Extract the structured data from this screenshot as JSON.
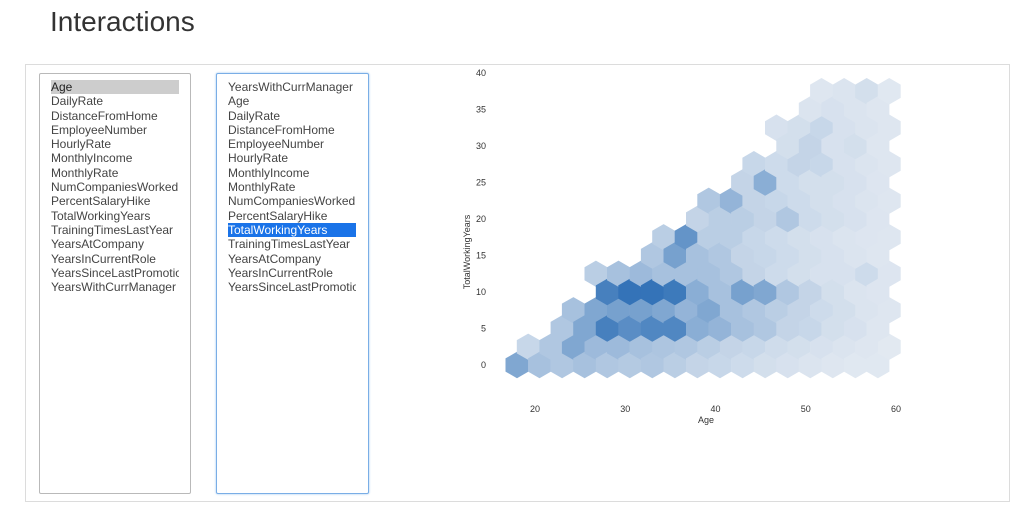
{
  "page": {
    "title": "Interactions"
  },
  "x_select": {
    "selected": "Age",
    "options": [
      "Age",
      "DailyRate",
      "DistanceFromHome",
      "EmployeeNumber",
      "HourlyRate",
      "MonthlyIncome",
      "MonthlyRate",
      "NumCompaniesWorked",
      "PercentSalaryHike",
      "TotalWorkingYears",
      "TrainingTimesLastYear",
      "YearsAtCompany",
      "YearsInCurrentRole",
      "YearsSinceLastPromotion",
      "YearsWithCurrManager"
    ]
  },
  "y_select": {
    "selected": "TotalWorkingYears",
    "options": [
      "YearsWithCurrManager",
      "Age",
      "DailyRate",
      "DistanceFromHome",
      "EmployeeNumber",
      "HourlyRate",
      "MonthlyIncome",
      "MonthlyRate",
      "NumCompaniesWorked",
      "PercentSalaryHike",
      "TotalWorkingYears",
      "TrainingTimesLastYear",
      "YearsAtCompany",
      "YearsInCurrentRole",
      "YearsSinceLastPromotion"
    ]
  },
  "chart_data": {
    "type": "heatmap",
    "subtype": "hexbin",
    "xlabel": "Age",
    "ylabel": "TotalWorkingYears",
    "xlim": [
      15,
      63
    ],
    "ylim": [
      -2,
      43
    ],
    "xticks": [
      20,
      30,
      40,
      50,
      60
    ],
    "yticks": [
      0,
      5,
      10,
      15,
      20,
      25,
      30,
      35,
      40
    ],
    "colors": {
      "low": "#eaeef4",
      "high": "#2a6db5"
    },
    "cells": [
      [
        18,
        0,
        0.55
      ],
      [
        19.25,
        2.5,
        0.18
      ],
      [
        20.5,
        0,
        0.35
      ],
      [
        21.75,
        2.5,
        0.3
      ],
      [
        23,
        0,
        0.3
      ],
      [
        24.25,
        2.5,
        0.55
      ],
      [
        25.5,
        0,
        0.35
      ],
      [
        26.75,
        2.5,
        0.4
      ],
      [
        28,
        0,
        0.3
      ],
      [
        29.25,
        2.5,
        0.4
      ],
      [
        30.5,
        0,
        0.28
      ],
      [
        31.75,
        2.5,
        0.35
      ],
      [
        33,
        0,
        0.3
      ],
      [
        34.25,
        2.5,
        0.32
      ],
      [
        35.5,
        0,
        0.25
      ],
      [
        36.75,
        2.5,
        0.3
      ],
      [
        38,
        0,
        0.2
      ],
      [
        39.25,
        2.5,
        0.25
      ],
      [
        40.5,
        0,
        0.18
      ],
      [
        41.75,
        2.5,
        0.2
      ],
      [
        43,
        0,
        0.15
      ],
      [
        44.25,
        2.5,
        0.18
      ],
      [
        45.5,
        0,
        0.12
      ],
      [
        46.75,
        2.5,
        0.14
      ],
      [
        48,
        0,
        0.1
      ],
      [
        49.25,
        2.5,
        0.12
      ],
      [
        50.5,
        0,
        0.08
      ],
      [
        51.75,
        2.5,
        0.1
      ],
      [
        53,
        0,
        0.06
      ],
      [
        54.25,
        2.5,
        0.08
      ],
      [
        55.5,
        0,
        0.05
      ],
      [
        56.75,
        2.5,
        0.06
      ],
      [
        58,
        0,
        0.05
      ],
      [
        59.25,
        2.5,
        0.04
      ],
      [
        23,
        5,
        0.3
      ],
      [
        24.25,
        7.5,
        0.35
      ],
      [
        25.5,
        5,
        0.55
      ],
      [
        26.75,
        7.5,
        0.55
      ],
      [
        28,
        5,
        0.85
      ],
      [
        29.25,
        7.5,
        0.6
      ],
      [
        30.5,
        5,
        0.75
      ],
      [
        31.75,
        7.5,
        0.6
      ],
      [
        33,
        5,
        0.8
      ],
      [
        34.25,
        7.5,
        0.55
      ],
      [
        35.5,
        5,
        0.8
      ],
      [
        36.75,
        7.5,
        0.45
      ],
      [
        38,
        5,
        0.5
      ],
      [
        39.25,
        7.5,
        0.55
      ],
      [
        40.5,
        5,
        0.45
      ],
      [
        41.75,
        7.5,
        0.35
      ],
      [
        43,
        5,
        0.35
      ],
      [
        44.25,
        7.5,
        0.3
      ],
      [
        45.5,
        5,
        0.3
      ],
      [
        46.75,
        7.5,
        0.25
      ],
      [
        48,
        5,
        0.2
      ],
      [
        49.25,
        7.5,
        0.2
      ],
      [
        50.5,
        5,
        0.18
      ],
      [
        51.75,
        7.5,
        0.15
      ],
      [
        53,
        5,
        0.12
      ],
      [
        54.25,
        7.5,
        0.12
      ],
      [
        55.5,
        5,
        0.1
      ],
      [
        56.75,
        7.5,
        0.08
      ],
      [
        58,
        5,
        0.06
      ],
      [
        59.25,
        7.5,
        0.06
      ],
      [
        26.75,
        12.5,
        0.25
      ],
      [
        28,
        10,
        0.85
      ],
      [
        29.25,
        12.5,
        0.35
      ],
      [
        30.5,
        10,
        0.95
      ],
      [
        31.75,
        12.5,
        0.4
      ],
      [
        33,
        10,
        0.95
      ],
      [
        34.25,
        12.5,
        0.35
      ],
      [
        35.5,
        10,
        0.9
      ],
      [
        36.75,
        12.5,
        0.35
      ],
      [
        38,
        10,
        0.5
      ],
      [
        39.25,
        12.5,
        0.35
      ],
      [
        40.5,
        10,
        0.35
      ],
      [
        41.75,
        12.5,
        0.3
      ],
      [
        43,
        10,
        0.6
      ],
      [
        44.25,
        12.5,
        0.2
      ],
      [
        45.5,
        10,
        0.55
      ],
      [
        46.75,
        12.5,
        0.15
      ],
      [
        48,
        10,
        0.3
      ],
      [
        49.25,
        12.5,
        0.12
      ],
      [
        50.5,
        10,
        0.2
      ],
      [
        51.75,
        12.5,
        0.1
      ],
      [
        53,
        10,
        0.12
      ],
      [
        54.25,
        12.5,
        0.1
      ],
      [
        55.5,
        10,
        0.08
      ],
      [
        56.75,
        12.5,
        0.15
      ],
      [
        58,
        10,
        0.07
      ],
      [
        59.25,
        12.5,
        0.07
      ],
      [
        33,
        15,
        0.3
      ],
      [
        34.25,
        17.5,
        0.25
      ],
      [
        35.5,
        15,
        0.6
      ],
      [
        36.75,
        17.5,
        0.7
      ],
      [
        38,
        15,
        0.35
      ],
      [
        39.25,
        17.5,
        0.25
      ],
      [
        40.5,
        15,
        0.3
      ],
      [
        41.75,
        17.5,
        0.25
      ],
      [
        43,
        15,
        0.2
      ],
      [
        44.25,
        17.5,
        0.18
      ],
      [
        45.5,
        15,
        0.18
      ],
      [
        46.75,
        17.5,
        0.15
      ],
      [
        48,
        15,
        0.15
      ],
      [
        49.25,
        17.5,
        0.12
      ],
      [
        50.5,
        15,
        0.12
      ],
      [
        51.75,
        17.5,
        0.1
      ],
      [
        53,
        15,
        0.1
      ],
      [
        54.25,
        17.5,
        0.08
      ],
      [
        55.5,
        15,
        0.08
      ],
      [
        56.75,
        17.5,
        0.07
      ],
      [
        58,
        15,
        0.06
      ],
      [
        59.25,
        17.5,
        0.06
      ],
      [
        38,
        20,
        0.2
      ],
      [
        39.25,
        22.5,
        0.3
      ],
      [
        40.5,
        20,
        0.25
      ],
      [
        41.75,
        22.5,
        0.45
      ],
      [
        43,
        20,
        0.25
      ],
      [
        44.25,
        22.5,
        0.2
      ],
      [
        45.5,
        20,
        0.2
      ],
      [
        46.75,
        22.5,
        0.18
      ],
      [
        48,
        20,
        0.3
      ],
      [
        49.25,
        22.5,
        0.15
      ],
      [
        50.5,
        20,
        0.15
      ],
      [
        51.75,
        22.5,
        0.12
      ],
      [
        53,
        20,
        0.12
      ],
      [
        54.25,
        22.5,
        0.1
      ],
      [
        55.5,
        20,
        0.1
      ],
      [
        56.75,
        22.5,
        0.08
      ],
      [
        58,
        20,
        0.07
      ],
      [
        59.25,
        22.5,
        0.06
      ],
      [
        43,
        25,
        0.2
      ],
      [
        44.25,
        27.5,
        0.18
      ],
      [
        45.5,
        25,
        0.5
      ],
      [
        46.75,
        27.5,
        0.15
      ],
      [
        48,
        25,
        0.15
      ],
      [
        49.25,
        27.5,
        0.2
      ],
      [
        50.5,
        25,
        0.12
      ],
      [
        51.75,
        27.5,
        0.18
      ],
      [
        53,
        25,
        0.12
      ],
      [
        54.25,
        27.5,
        0.1
      ],
      [
        55.5,
        25,
        0.1
      ],
      [
        56.75,
        27.5,
        0.08
      ],
      [
        58,
        25,
        0.07
      ],
      [
        59.25,
        27.5,
        0.06
      ],
      [
        46.75,
        32.5,
        0.1
      ],
      [
        48,
        30,
        0.12
      ],
      [
        49.25,
        32.5,
        0.12
      ],
      [
        50.5,
        30,
        0.2
      ],
      [
        51.75,
        32.5,
        0.18
      ],
      [
        53,
        30,
        0.1
      ],
      [
        54.25,
        32.5,
        0.1
      ],
      [
        55.5,
        30,
        0.12
      ],
      [
        56.75,
        32.5,
        0.08
      ],
      [
        58,
        30,
        0.06
      ],
      [
        59.25,
        32.5,
        0.06
      ],
      [
        50.5,
        35,
        0.08
      ],
      [
        51.75,
        37.5,
        0.06
      ],
      [
        53,
        35,
        0.1
      ],
      [
        54.25,
        37.5,
        0.08
      ],
      [
        55.5,
        35,
        0.08
      ],
      [
        56.75,
        37.5,
        0.12
      ],
      [
        58,
        35,
        0.06
      ],
      [
        59.25,
        37.5,
        0.05
      ]
    ]
  }
}
